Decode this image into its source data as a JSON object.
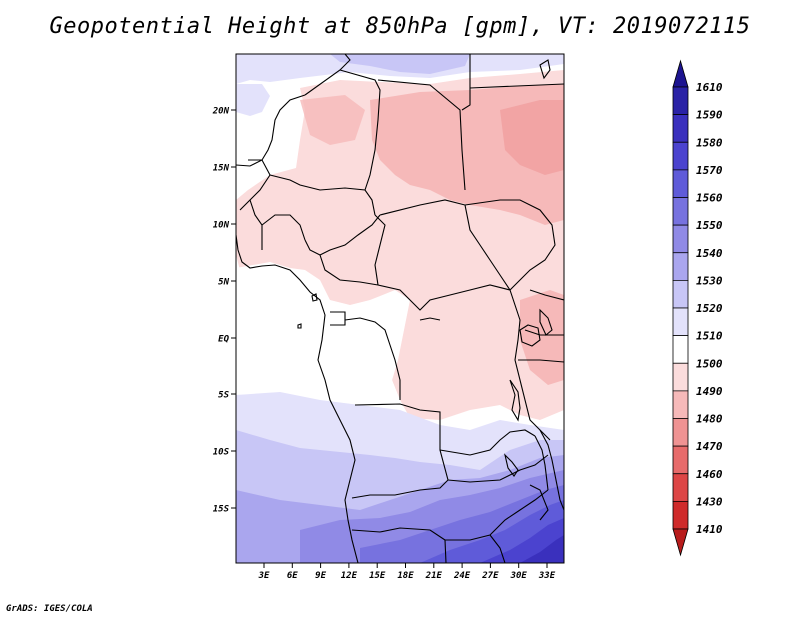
{
  "title": "Geopotential Height at 850hPa [gpm], VT: 2019072115",
  "footer": "GrADS: IGES/COLA",
  "map": {
    "lat_labels": [
      "20N",
      "15N",
      "10N",
      "5N",
      "EQ",
      "5S",
      "10S",
      "15S"
    ],
    "lon_labels": [
      "3E",
      "6E",
      "9E",
      "12E",
      "15E",
      "18E",
      "21E",
      "24E",
      "27E",
      "30E",
      "33E"
    ]
  },
  "colorbar": {
    "levels": [
      "1610",
      "1590",
      "1580",
      "1570",
      "1560",
      "1550",
      "1540",
      "1530",
      "1520",
      "1510",
      "1500",
      "1490",
      "1480",
      "1470",
      "1460",
      "1430",
      "1410"
    ],
    "colors": [
      "#1d1490",
      "#2a22a6",
      "#3a30bd",
      "#4b43cf",
      "#5f5bd9",
      "#7772df",
      "#908ae6",
      "#aaa6ee",
      "#c8c6f6",
      "#e3e2fb",
      "#ffffff",
      "#fbdcdc",
      "#f6b9b9",
      "#ef9393",
      "#e76b6b",
      "#dd4646",
      "#cf2a2a",
      "#b81c1c"
    ]
  }
}
